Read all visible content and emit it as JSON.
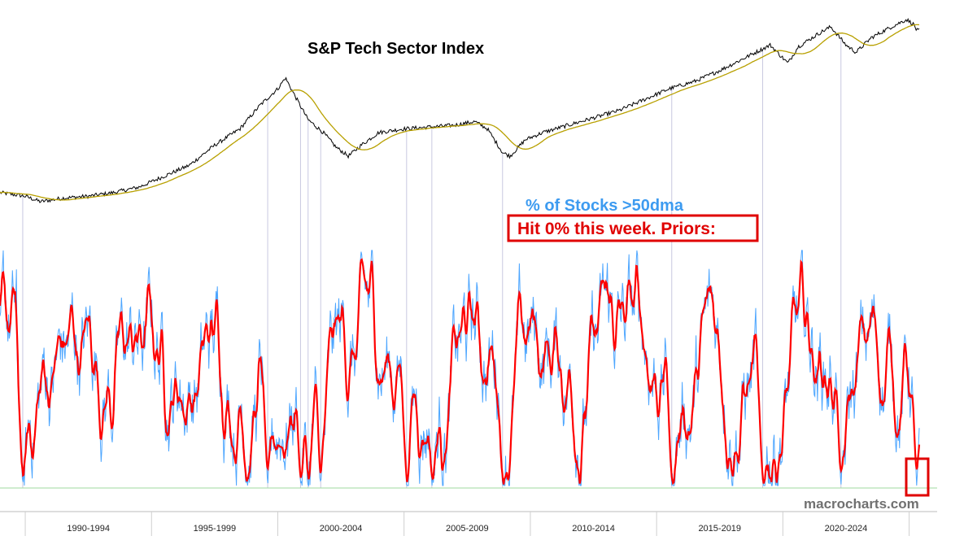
{
  "chart_data": {
    "type": "line",
    "title": "S&P Tech Sector Index",
    "panels": [
      {
        "name": "S&P Tech Sector Index",
        "series": [
          {
            "name": "",
            "color": "#000000"
          },
          {
            "name": "",
            "color": "#b8a000"
          }
        ],
        "approx_path": [
          [
            1989.0,
            0.05
          ],
          [
            1990.0,
            0.03
          ],
          [
            1990.6,
            0.0
          ],
          [
            1991.5,
            0.02
          ],
          [
            1992.5,
            0.03
          ],
          [
            1993.5,
            0.05
          ],
          [
            1994.5,
            0.08
          ],
          [
            1995.5,
            0.14
          ],
          [
            1996.5,
            0.2
          ],
          [
            1997.5,
            0.31
          ],
          [
            1998.5,
            0.4
          ],
          [
            1999.3,
            0.53
          ],
          [
            2000.0,
            0.62
          ],
          [
            2000.3,
            0.68
          ],
          [
            2000.8,
            0.55
          ],
          [
            2001.2,
            0.45
          ],
          [
            2001.8,
            0.38
          ],
          [
            2002.3,
            0.3
          ],
          [
            2002.8,
            0.25
          ],
          [
            2003.3,
            0.31
          ],
          [
            2004.0,
            0.38
          ],
          [
            2005.0,
            0.4
          ],
          [
            2006.0,
            0.41
          ],
          [
            2007.0,
            0.42
          ],
          [
            2007.8,
            0.44
          ],
          [
            2008.3,
            0.4
          ],
          [
            2008.9,
            0.27
          ],
          [
            2009.2,
            0.25
          ],
          [
            2009.8,
            0.34
          ],
          [
            2010.5,
            0.38
          ],
          [
            2011.5,
            0.42
          ],
          [
            2012.5,
            0.46
          ],
          [
            2013.5,
            0.5
          ],
          [
            2014.5,
            0.56
          ],
          [
            2015.5,
            0.62
          ],
          [
            2016.5,
            0.66
          ],
          [
            2017.5,
            0.72
          ],
          [
            2018.5,
            0.79
          ],
          [
            2019.5,
            0.86
          ],
          [
            2020.2,
            0.76
          ],
          [
            2020.6,
            0.85
          ],
          [
            2021.5,
            0.93
          ],
          [
            2021.9,
            0.96
          ],
          [
            2022.5,
            0.86
          ],
          [
            2022.9,
            0.82
          ],
          [
            2023.5,
            0.9
          ],
          [
            2024.3,
            0.96
          ],
          [
            2024.9,
            1.0
          ],
          [
            2025.2,
            0.97
          ],
          [
            2025.3,
            0.94
          ]
        ]
      },
      {
        "name": "% of Stocks >50dma",
        "series": [
          {
            "name": "% of Stocks >50dma",
            "color": "#4da6ff"
          },
          {
            "name": "",
            "color": "#ff0000"
          }
        ],
        "reference_line": {
          "value": 0,
          "color": "#9fd89f"
        },
        "prior_zero_hits": [
          1989.9,
          1999.6,
          2000.9,
          2001.2,
          2001.7,
          2005.1,
          2006.1,
          2008.9,
          2015.6,
          2019.2,
          2022.3,
          2025.3
        ],
        "annotation": "Hit 0% this week. Priors:",
        "highlight_box_date": 2025.3,
        "ylim": [
          0,
          100
        ]
      }
    ],
    "x_tick_labels": [
      "1990-1994",
      "1995-1999",
      "2000-2004",
      "2005-2009",
      "2010-2014",
      "2015-2019",
      "2020-2024"
    ],
    "x_tick_ranges": [
      [
        1990,
        1994
      ],
      [
        1995,
        1999
      ],
      [
        2000,
        2004
      ],
      [
        2005,
        2009
      ],
      [
        2010,
        2014
      ],
      [
        2015,
        2019
      ],
      [
        2020,
        2024
      ]
    ],
    "xlim": [
      1989.0,
      2025.4
    ]
  },
  "labels": {
    "subtitle": "% of Stocks >50dma",
    "annotation": "Hit 0% this week. Priors:",
    "watermark": "macrocharts.com"
  },
  "colors": {
    "price": "#000000",
    "price_ma": "#b8a000",
    "breadth": "#4da6ff",
    "breadth_smooth": "#ff0000",
    "marker_lines": "#c8c8e0",
    "zero_line": "#9fd89f",
    "annotation": "#e00000",
    "subtitle": "#3d9bf0"
  }
}
